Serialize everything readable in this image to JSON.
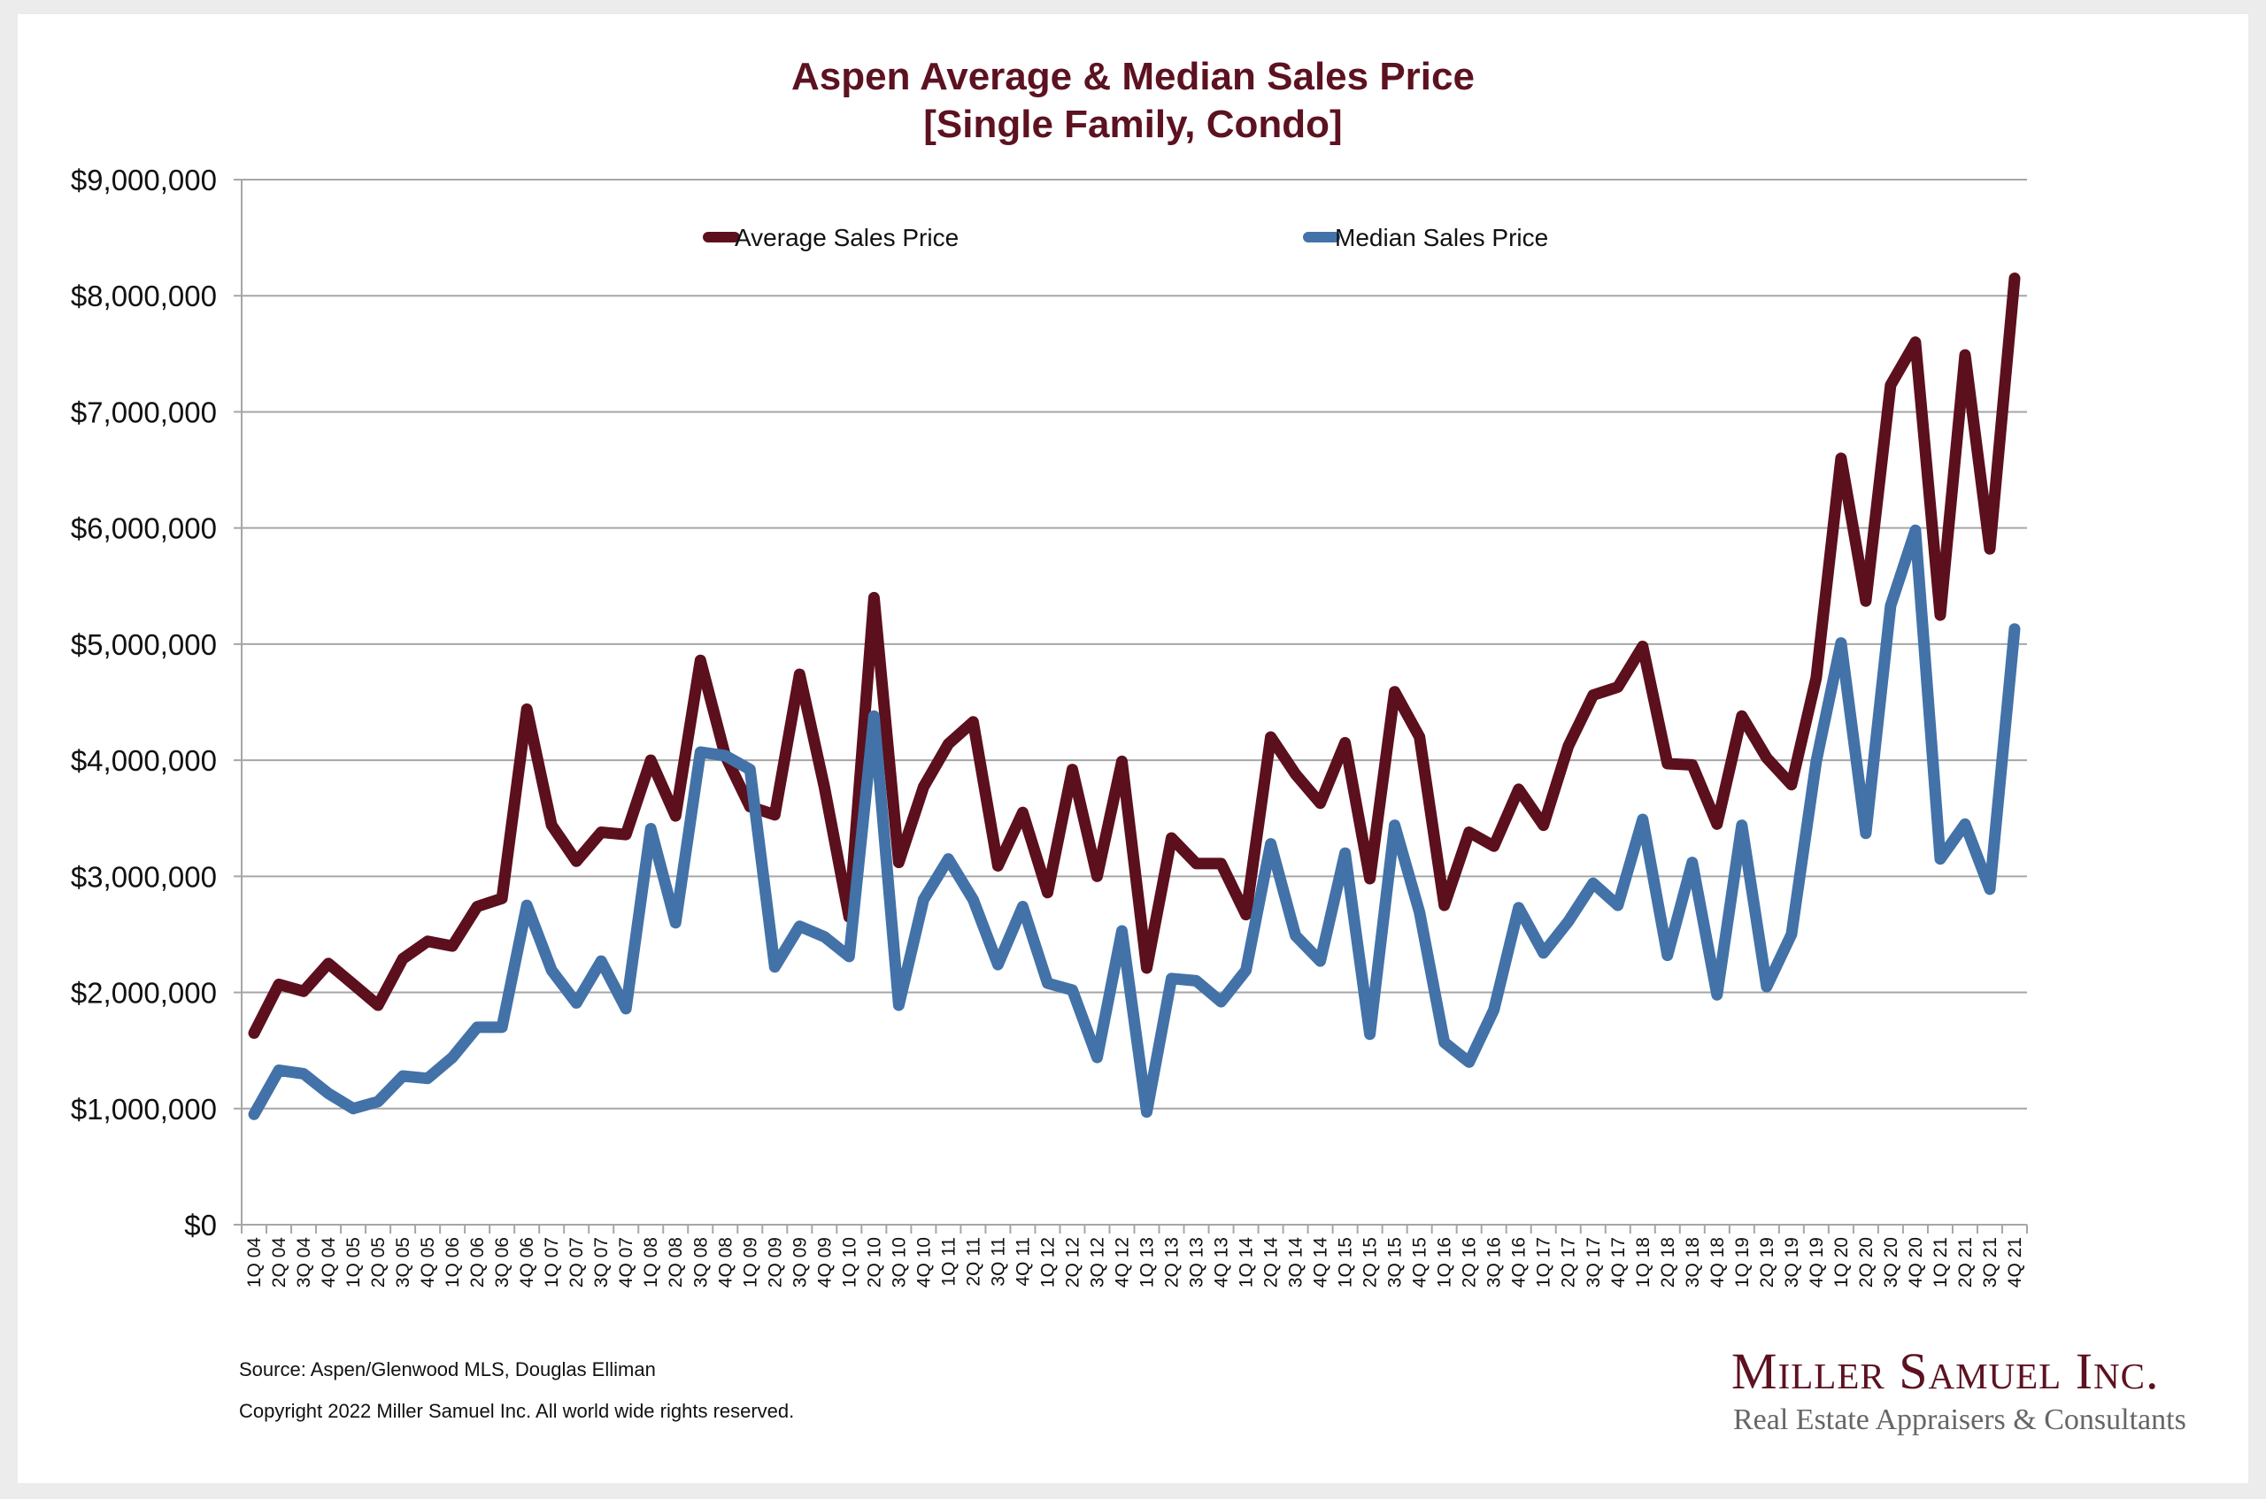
{
  "title_line1": "Aspen Average & Median Sales Price",
  "title_line2": "[Single Family, Condo]",
  "footer": {
    "source": "Source: Aspen/Glenwood MLS, Douglas Elliman",
    "copyright": "Copyright 2022 Miller Samuel Inc.  All world wide rights reserved."
  },
  "logo": {
    "name": "Miller Samuel Inc.",
    "tagline": "Real Estate Appraisers & Consultants"
  },
  "colors": {
    "average": "#5c0f1c",
    "median": "#4272a8",
    "grid": "#a6a6a6",
    "title": "#5c1220"
  },
  "chart_data": {
    "type": "line",
    "title": "Aspen Average & Median Sales Price [Single Family, Condo]",
    "xlabel": "",
    "ylabel": "",
    "ylim": [
      0,
      9000000
    ],
    "yticks": [
      0,
      1000000,
      2000000,
      3000000,
      4000000,
      5000000,
      6000000,
      7000000,
      8000000,
      9000000
    ],
    "ytick_labels": [
      "$0",
      "$1,000,000",
      "$2,000,000",
      "$3,000,000",
      "$4,000,000",
      "$5,000,000",
      "$6,000,000",
      "$7,000,000",
      "$8,000,000",
      "$9,000,000"
    ],
    "grid": true,
    "legend_position": "top",
    "categories": [
      "1Q 04",
      "2Q 04",
      "3Q 04",
      "4Q 04",
      "1Q 05",
      "2Q 05",
      "3Q 05",
      "4Q 05",
      "1Q 06",
      "2Q 06",
      "3Q 06",
      "4Q 06",
      "1Q 07",
      "2Q 07",
      "3Q 07",
      "4Q 07",
      "1Q 08",
      "2Q 08",
      "3Q 08",
      "4Q 08",
      "1Q 09",
      "2Q 09",
      "3Q 09",
      "4Q 09",
      "1Q 10",
      "2Q 10",
      "3Q 10",
      "4Q 10",
      "1Q 11",
      "2Q 11",
      "3Q 11",
      "4Q 11",
      "1Q 12",
      "2Q 12",
      "3Q 12",
      "4Q 12",
      "1Q 13",
      "2Q 13",
      "3Q 13",
      "4Q 13",
      "1Q 14",
      "2Q 14",
      "3Q 14",
      "4Q 14",
      "1Q 15",
      "2Q 15",
      "3Q 15",
      "4Q 15",
      "1Q 16",
      "2Q 16",
      "3Q 16",
      "4Q 16",
      "1Q 17",
      "2Q 17",
      "3Q 17",
      "4Q 17",
      "1Q 18",
      "2Q 18",
      "3Q 18",
      "4Q 18",
      "1Q 19",
      "2Q 19",
      "3Q 19",
      "4Q 19",
      "1Q 20",
      "2Q 20",
      "3Q 20",
      "4Q 20",
      "1Q 21",
      "2Q 21",
      "3Q 21",
      "4Q 21"
    ],
    "series": [
      {
        "name": "Average Sales Price",
        "color": "#5c0f1c",
        "values": [
          1650000,
          2070000,
          2010000,
          2250000,
          2070000,
          1890000,
          2290000,
          2440000,
          2400000,
          2740000,
          2810000,
          4440000,
          3440000,
          3130000,
          3380000,
          3360000,
          4000000,
          3520000,
          4860000,
          4040000,
          3600000,
          3530000,
          4740000,
          3770000,
          2650000,
          5400000,
          3120000,
          3770000,
          4140000,
          4330000,
          3090000,
          3550000,
          2860000,
          3920000,
          3000000,
          3990000,
          2210000,
          3330000,
          3110000,
          3110000,
          2670000,
          4200000,
          3880000,
          3630000,
          4150000,
          2980000,
          4590000,
          4200000,
          2750000,
          3380000,
          3260000,
          3750000,
          3440000,
          4120000,
          4560000,
          4630000,
          4980000,
          3970000,
          3960000,
          3450000,
          4380000,
          4020000,
          3790000,
          4710000,
          6600000,
          5370000,
          7230000,
          7600000,
          5250000,
          7490000,
          5820000,
          8150000
        ]
      },
      {
        "name": "Median Sales Price",
        "color": "#4272a8",
        "values": [
          950000,
          1330000,
          1300000,
          1130000,
          1000000,
          1060000,
          1280000,
          1260000,
          1440000,
          1700000,
          1700000,
          2750000,
          2190000,
          1910000,
          2270000,
          1860000,
          3410000,
          2600000,
          4070000,
          4040000,
          3920000,
          2220000,
          2570000,
          2480000,
          2310000,
          4380000,
          1890000,
          2800000,
          3150000,
          2800000,
          2240000,
          2740000,
          2080000,
          2020000,
          1440000,
          2530000,
          970000,
          2120000,
          2100000,
          1920000,
          2190000,
          3280000,
          2490000,
          2270000,
          3200000,
          1640000,
          3440000,
          2690000,
          1570000,
          1400000,
          1850000,
          2730000,
          2340000,
          2610000,
          2940000,
          2750000,
          3490000,
          2320000,
          3120000,
          1980000,
          3440000,
          2050000,
          2500000,
          3990000,
          5010000,
          3370000,
          5330000,
          5980000,
          3150000,
          3450000,
          2890000,
          5130000
        ]
      }
    ]
  }
}
